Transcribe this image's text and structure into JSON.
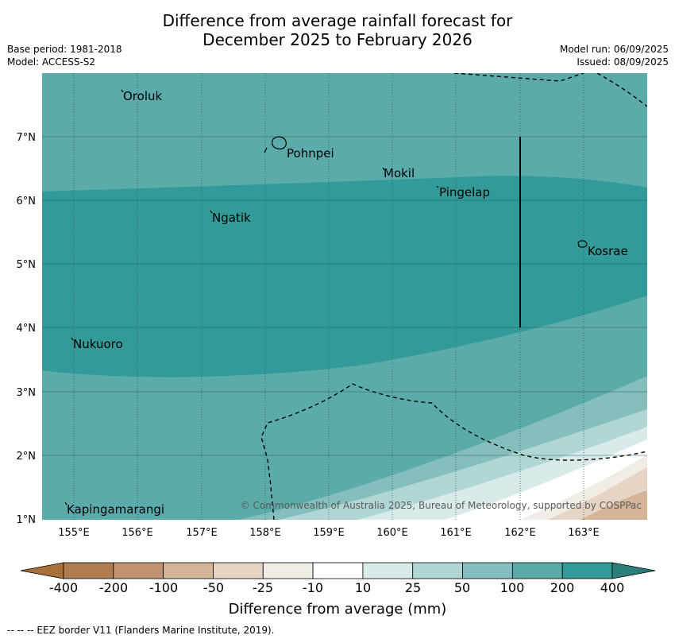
{
  "title_line1": "Difference from average rainfall forecast for",
  "title_line2": "December 2025 to February 2026",
  "meta": {
    "base_period": "Base period: 1981-2018",
    "model": "Model: ACCESS-S2",
    "model_run": "Model run: 06/09/2025",
    "issued": "Issued: 08/09/2025"
  },
  "lat_labels": [
    "7°N",
    "6°N",
    "5°N",
    "4°N",
    "3°N",
    "2°N",
    "1°N"
  ],
  "lon_labels": [
    "155°E",
    "156°E",
    "157°E",
    "158°E",
    "159°E",
    "160°E",
    "161°E",
    "162°E",
    "163°E"
  ],
  "places": [
    {
      "name": "Oroluk"
    },
    {
      "name": "Pohnpei"
    },
    {
      "name": "Mokil"
    },
    {
      "name": "Pingelap"
    },
    {
      "name": "Ngatik"
    },
    {
      "name": "Kosrae"
    },
    {
      "name": "Nukuoro"
    },
    {
      "name": "Kapingamarangi"
    }
  ],
  "copyright": "© Commonwealth of Australia 2025, Bureau of Meteorology, supported by COSPPac",
  "colorbar": {
    "ticks": [
      "-400",
      "-200",
      "-100",
      "-50",
      "-25",
      "-10",
      "10",
      "25",
      "50",
      "100",
      "200",
      "400"
    ],
    "colors": [
      "#a8713a",
      "#af7d4f",
      "#c09470",
      "#d5b598",
      "#e6d4c4",
      "#f1ece6",
      "#ffffff",
      "#d8ebea",
      "#b1d7d5",
      "#84bfbd",
      "#5aabaa",
      "#329a98",
      "#2a7f7c"
    ],
    "title": "Difference from average (mm)"
  },
  "eez_note": "--  --  -- EEZ border V11 (Flanders Marine Institute, 2019)."
}
